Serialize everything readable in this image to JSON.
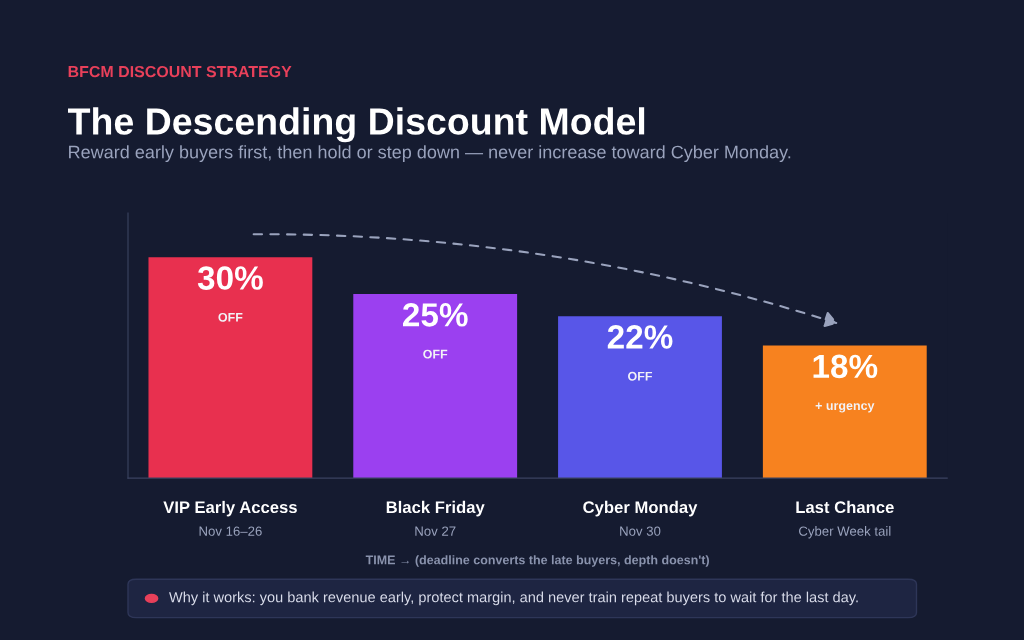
{
  "chart_data": {
    "type": "bar",
    "title": "The Descending Discount Model",
    "subtitle": "Reward early buyers first, then hold or step down — never increase toward Cyber Monday.",
    "xlabel": "TIME → (deadline converts the late buyers, depth doesn't)",
    "categories": [
      "VIP Early Access\nNov 16–26",
      "Black Friday\nNov 27",
      "Cyber Monday\nNov 30",
      "Last Chance\nCyber Week tail"
    ],
    "values": [
      30,
      25,
      22,
      18
    ],
    "colors": [
      "#e8304f",
      "#9b40f0",
      "#5856e8",
      "#f7821f"
    ],
    "value_labels": [
      "30%",
      "25%",
      "22%",
      "18%"
    ],
    "ylim": [
      0,
      36
    ],
    "tick_labels": "x",
    "grid": false,
    "legend": false,
    "annotations": [
      "BFCM DISCOUNT STRATEGY",
      "Why it works: you bank revenue early, protect margin, and never train repeat buyers to wait for the last day.",
      "OFF",
      "OFF",
      "OFF",
      "+ urgency"
    ]
  }
}
